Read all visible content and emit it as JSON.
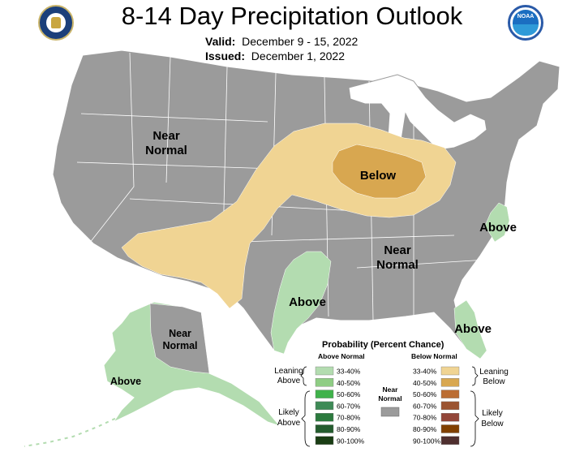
{
  "title": "8-14 Day Precipitation Outlook",
  "valid_label": "Valid:",
  "valid_dates": "December 9 - 15, 2022",
  "issued_label": "Issued:",
  "issued_date": "December 1, 2022",
  "logos": {
    "left": "commerce-department-seal",
    "right": "noaa-logo",
    "noaa_text": "NOAA"
  },
  "regions": {
    "near_normal_west": [
      "Near",
      "Normal"
    ],
    "below_midwest": "Below",
    "above_carolinas": "Above",
    "near_normal_southeast": [
      "Near",
      "Normal"
    ],
    "above_texas": "Above",
    "above_florida": "Above",
    "near_normal_alaska": [
      "Near",
      "Normal"
    ],
    "above_alaska": "Above"
  },
  "legend": {
    "title": "Probability (Percent Chance)",
    "above_header": "Above Normal",
    "below_header": "Below Normal",
    "near_label": [
      "Near",
      "Normal"
    ],
    "leaning_above": [
      "Leaning",
      "Above"
    ],
    "likely_above": [
      "Likely",
      "Above"
    ],
    "leaning_below": [
      "Leaning",
      "Below"
    ],
    "likely_below": [
      "Likely",
      "Below"
    ],
    "above_categories": [
      {
        "range": "33-40%",
        "color": "#b3dcb0"
      },
      {
        "range": "40-50%",
        "color": "#8fcd84"
      },
      {
        "range": "50-60%",
        "color": "#3fb24a"
      },
      {
        "range": "60-70%",
        "color": "#3e8a56"
      },
      {
        "range": "70-80%",
        "color": "#2c7a3e"
      },
      {
        "range": "80-90%",
        "color": "#245c2e"
      },
      {
        "range": "90-100%",
        "color": "#1a3d14"
      }
    ],
    "below_categories": [
      {
        "range": "33-40%",
        "color": "#f0d493"
      },
      {
        "range": "40-50%",
        "color": "#d8a750"
      },
      {
        "range": "50-60%",
        "color": "#bb6d33"
      },
      {
        "range": "60-70%",
        "color": "#9b5431"
      },
      {
        "range": "70-80%",
        "color": "#934639"
      },
      {
        "range": "80-90%",
        "color": "#804000"
      },
      {
        "range": "90-100%",
        "color": "#4f2f2f"
      }
    ],
    "near_color": "#9b9b9b"
  },
  "map_colors": {
    "near_normal": "#9b9b9b",
    "leaning_above": "#b3dcb0",
    "leaning_below": "#f0d493",
    "below_40_50": "#d8a750",
    "no_data": "#ffffff",
    "border": "#ffffff"
  }
}
